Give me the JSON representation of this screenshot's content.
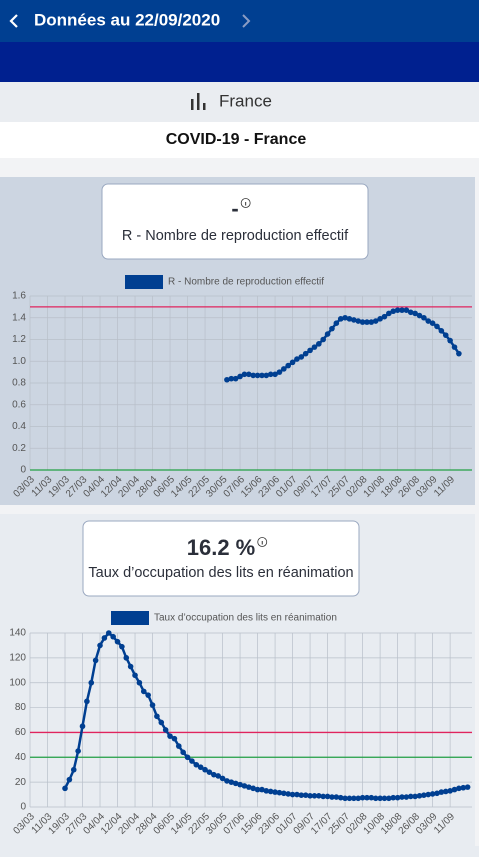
{
  "header": {
    "title": "Données au 22/09/2020"
  },
  "selector": {
    "label": "France"
  },
  "page_title": "COVID-19 - France",
  "chart_data": [
    {
      "type": "line",
      "kpi": "-",
      "title": "R - Nombre de reproduction effectif",
      "categories": [
        "03/03",
        null,
        null,
        null,
        "11/03",
        null,
        null,
        null,
        "19/03",
        null,
        null,
        null,
        "27/03",
        null,
        null,
        null,
        "04/04",
        null,
        null,
        null,
        "12/04",
        null,
        null,
        null,
        "20/04",
        null,
        null,
        null,
        "28/04",
        null,
        null,
        null,
        "06/05",
        null,
        null,
        null,
        "14/05",
        null,
        null,
        null,
        "22/05",
        null,
        null,
        null,
        "30/05",
        null,
        null,
        null,
        "07/06",
        null,
        null,
        null,
        "15/06",
        null,
        null,
        null,
        "23/06",
        null,
        null,
        null,
        "01/07",
        null,
        null,
        null,
        "09/07",
        null,
        null,
        null,
        "17/07",
        null,
        null,
        null,
        "25/07",
        null,
        null,
        null,
        "02/08",
        null,
        null,
        null,
        "10/08",
        null,
        null,
        null,
        "18/08",
        null,
        null,
        null,
        "26/08",
        null,
        null,
        null,
        "03/09",
        null,
        null,
        null,
        "11/09",
        null,
        null,
        null,
        null,
        null
      ],
      "series": [
        {
          "name": "R - Nombre de reproduction effectif",
          "color": "#003f91",
          "values": [
            null,
            null,
            null,
            null,
            null,
            null,
            null,
            null,
            null,
            null,
            null,
            null,
            null,
            null,
            null,
            null,
            null,
            null,
            null,
            null,
            null,
            null,
            null,
            null,
            null,
            null,
            null,
            null,
            null,
            null,
            null,
            null,
            null,
            null,
            null,
            null,
            null,
            null,
            null,
            null,
            null,
            null,
            null,
            null,
            null,
            0.83,
            0.84,
            0.84,
            0.86,
            0.88,
            0.88,
            0.87,
            0.87,
            0.87,
            0.87,
            0.88,
            0.88,
            0.9,
            0.93,
            0.96,
            0.99,
            1.02,
            1.04,
            1.07,
            1.1,
            1.13,
            1.16,
            1.2,
            1.25,
            1.3,
            1.35,
            1.39,
            1.4,
            1.39,
            1.38,
            1.37,
            1.36,
            1.36,
            1.36,
            1.37,
            1.39,
            1.41,
            1.44,
            1.46,
            1.47,
            1.47,
            1.47,
            1.45,
            1.44,
            1.42,
            1.4,
            1.37,
            1.35,
            1.32,
            1.28,
            1.24,
            1.19,
            1.13,
            1.07,
            null,
            null,
            null
          ]
        }
      ],
      "ylim": [
        0,
        1.6
      ],
      "yticks": [
        0,
        0.2,
        0.4,
        0.6,
        0.8,
        {
          "value": 1,
          "label": "1.0"
        },
        1.2,
        1.4,
        1.6
      ],
      "thresholds": [
        {
          "value": 1.5,
          "color": "#e0245e"
        },
        {
          "value": 0,
          "color": "#22a045"
        }
      ],
      "grid": true,
      "background": "#ccd5e1"
    },
    {
      "type": "line",
      "kpi": "16.2 %",
      "title": "Taux d’occupation des lits en réanimation",
      "categories": [
        "03/03",
        null,
        null,
        null,
        "11/03",
        null,
        null,
        null,
        "19/03",
        null,
        null,
        null,
        "27/03",
        null,
        null,
        null,
        "04/04",
        null,
        null,
        null,
        "12/04",
        null,
        null,
        null,
        "20/04",
        null,
        null,
        null,
        "28/04",
        null,
        null,
        null,
        "06/05",
        null,
        null,
        null,
        "14/05",
        null,
        null,
        null,
        "22/05",
        null,
        null,
        null,
        "30/05",
        null,
        null,
        null,
        "07/06",
        null,
        null,
        null,
        "15/06",
        null,
        null,
        null,
        "23/06",
        null,
        null,
        null,
        "01/07",
        null,
        null,
        null,
        "09/07",
        null,
        null,
        null,
        "17/07",
        null,
        null,
        null,
        "25/07",
        null,
        null,
        null,
        "02/08",
        null,
        null,
        null,
        "10/08",
        null,
        null,
        null,
        "18/08",
        null,
        null,
        null,
        "26/08",
        null,
        null,
        null,
        "03/09",
        null,
        null,
        null,
        "11/09",
        null,
        null,
        null,
        null,
        null
      ],
      "series": [
        {
          "name": "Taux d’occupation des lits en réanimation",
          "color": "#003f91",
          "values": [
            null,
            null,
            null,
            null,
            null,
            null,
            null,
            null,
            15,
            22,
            30,
            45,
            65,
            85,
            100,
            118,
            130,
            136,
            140,
            137,
            133,
            129,
            120,
            113,
            106,
            100,
            93,
            90,
            82,
            73,
            68,
            62,
            57,
            55,
            49,
            44,
            40,
            37,
            34,
            32,
            30,
            28,
            26,
            25,
            23,
            21,
            20,
            19,
            18,
            17,
            16,
            15,
            14,
            14,
            13,
            12.5,
            12,
            11.5,
            11,
            10.5,
            10,
            10,
            9.5,
            9.5,
            9,
            9,
            9,
            8.5,
            8.5,
            8,
            8,
            7.5,
            7,
            7,
            7,
            7,
            7.5,
            7.5,
            7.5,
            7,
            7,
            7,
            7,
            7.5,
            7.5,
            8,
            8,
            8.5,
            8.5,
            9,
            9.5,
            10,
            10.5,
            11,
            12,
            12.5,
            13,
            14,
            15,
            15.5,
            16,
            null
          ]
        }
      ],
      "ylim": [
        0,
        140
      ],
      "yticks": [
        0,
        20,
        40,
        60,
        80,
        100,
        120,
        140
      ],
      "thresholds": [
        {
          "value": 60,
          "color": "#e0245e"
        },
        {
          "value": 40,
          "color": "#22a045"
        }
      ],
      "grid": true,
      "background": "#e8ecf1"
    }
  ]
}
